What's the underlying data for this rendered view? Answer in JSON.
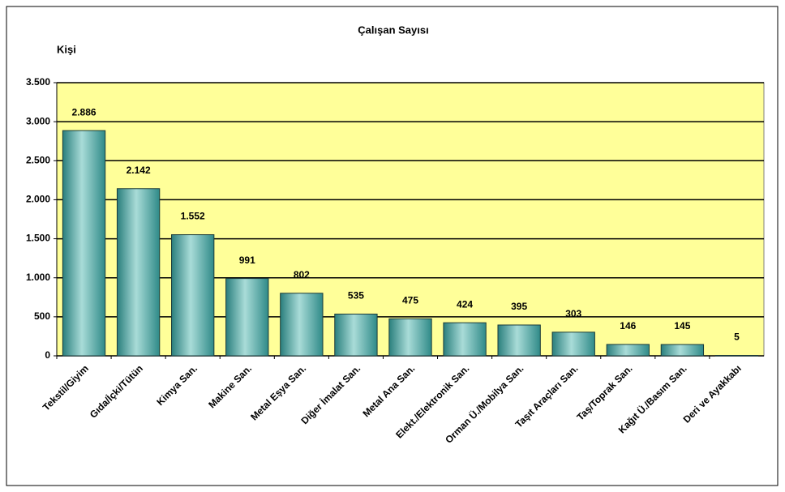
{
  "chart_data": {
    "type": "bar",
    "title": "Çalışan Sayısı",
    "y_label": "Kişi",
    "categories": [
      "Tekstil/Giyim",
      "Gıda/İçki/Tütün",
      "Kimya San.",
      "Makine San.",
      "Metal Eşya San.",
      "Diğer İmalat San.",
      "Metal Ana San.",
      "Elekt./Elektronik San.",
      "Orman Ü./Mobilya San.",
      "Taşıt Araçları San.",
      "Taş/Toprak San.",
      "Kağıt Ü./Basım San.",
      "Deri ve Ayakkabı"
    ],
    "values": [
      2886,
      2142,
      1552,
      991,
      802,
      535,
      475,
      424,
      395,
      303,
      146,
      145,
      5
    ],
    "value_labels": [
      "2.886",
      "2.142",
      "1.552",
      "991",
      "802",
      "535",
      "475",
      "424",
      "395",
      "303",
      "146",
      "145",
      "5"
    ],
    "color": "#3a9a98",
    "plot_background": "#ffff99",
    "ylim": [
      0,
      3500
    ],
    "yticks": [
      0,
      500,
      {
        "value": 1000,
        "label": "1.000"
      },
      {
        "value": 1500,
        "label": "1.500"
      },
      {
        "value": 2000,
        "label": "2.000"
      },
      {
        "value": 2500,
        "label": "2.500"
      },
      {
        "value": 3000,
        "label": "3.000"
      },
      {
        "value": 3500,
        "label": "3.500"
      }
    ],
    "grid": true
  }
}
